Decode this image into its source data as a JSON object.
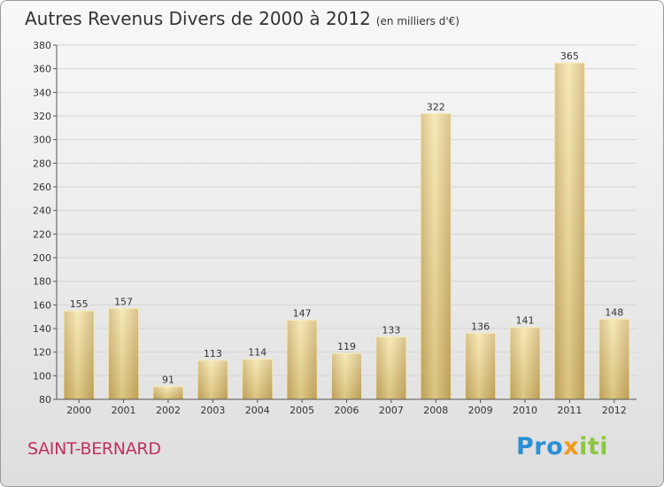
{
  "title": "Autres Revenus Divers de 2000 à 2012",
  "subtitle": "(en milliers d'€)",
  "commune": "SAINT-BERNARD",
  "logo": {
    "letters": [
      {
        "char": "P",
        "color": "#2a8fd6"
      },
      {
        "char": "r",
        "color": "#2a8fd6"
      },
      {
        "char": "o",
        "color": "#2a8fd6"
      },
      {
        "char": "x",
        "color": "#f39a1d"
      },
      {
        "char": "i",
        "color": "#8cc63f"
      },
      {
        "char": "t",
        "color": "#8cc63f"
      },
      {
        "char": "i",
        "color": "#8cc63f"
      }
    ]
  },
  "colors": {
    "bar_light": "#f6e4a0",
    "bar_dark": "#c9ad68",
    "axis": "#555555",
    "grid": "#d4d4d4",
    "commune": "#c0305e"
  },
  "chart_data": {
    "type": "bar",
    "title": "Autres Revenus Divers de 2000 à 2012",
    "subtitle": "(en milliers d'€)",
    "categories": [
      "2000",
      "2001",
      "2002",
      "2003",
      "2004",
      "2005",
      "2006",
      "2007",
      "2008",
      "2009",
      "2010",
      "2011",
      "2012"
    ],
    "values": [
      155,
      157,
      91,
      113,
      114,
      147,
      119,
      133,
      322,
      136,
      141,
      365,
      148
    ],
    "ylim": [
      80,
      380
    ],
    "yticks": [
      80,
      100,
      120,
      140,
      160,
      180,
      200,
      220,
      240,
      260,
      280,
      300,
      320,
      340,
      360,
      380
    ],
    "xlabel": "",
    "ylabel": "",
    "grid": true,
    "data_labels": true
  }
}
